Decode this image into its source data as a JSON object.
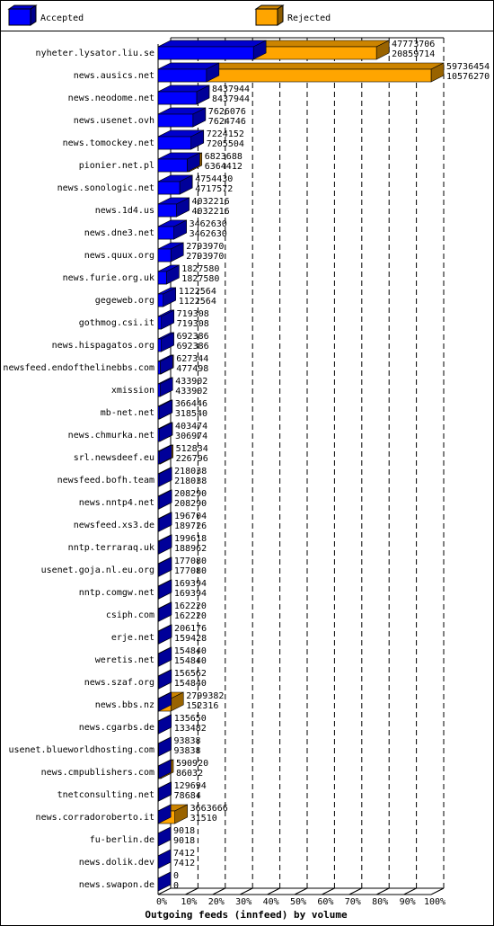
{
  "chart_data": {
    "type": "bar",
    "orientation": "horizontal",
    "title": "Outgoing feeds (innfeed) by volume",
    "categories": [
      "nyheter.lysator.liu.se",
      "news.ausics.net",
      "news.neodome.net",
      "news.usenet.ovh",
      "news.tomockey.net",
      "pionier.net.pl",
      "news.sonologic.net",
      "news.1d4.us",
      "news.dne3.net",
      "news.quux.org",
      "news.furie.org.uk",
      "gegeweb.org",
      "gothmog.csi.it",
      "news.hispagatos.org",
      "newsfeed.endofthelinebbs.com",
      "xmission",
      "mb-net.net",
      "news.chmurka.net",
      "srl.newsdeef.eu",
      "newsfeed.bofh.team",
      "news.nntp4.net",
      "newsfeed.xs3.de",
      "nntp.terraraq.uk",
      "usenet.goja.nl.eu.org",
      "nntp.comgw.net",
      "csiph.com",
      "erje.net",
      "weretis.net",
      "news.szaf.org",
      "news.bbs.nz",
      "news.cgarbs.de",
      "usenet.blueworldhosting.com",
      "news.cmpublishers.com",
      "tnetconsulting.net",
      "news.corradoroberto.it",
      "fu-berlin.de",
      "news.dolik.dev",
      "news.swapon.de"
    ],
    "series": [
      {
        "name": "Rejected",
        "color": "#ffa500",
        "values": [
          47773706,
          59736454,
          8437944,
          7626076,
          7224152,
          6823688,
          4754430,
          4032216,
          3462630,
          2793970,
          1827580,
          1122564,
          719308,
          692386,
          627344,
          433902,
          366446,
          403474,
          512834,
          218038,
          208290,
          196704,
          199618,
          177080,
          169394,
          162220,
          206176,
          154840,
          156562,
          2799382,
          135650,
          93838,
          590920,
          129694,
          3663666,
          9018,
          7412,
          0
        ]
      },
      {
        "name": "Accepted",
        "color": "#0000ff",
        "values": [
          20859714,
          10576270,
          8437944,
          7624746,
          7205504,
          6364412,
          4717572,
          4032216,
          3462630,
          2793970,
          1827580,
          1122564,
          719308,
          692386,
          477498,
          433902,
          318540,
          306974,
          226796,
          218038,
          208290,
          189726,
          188962,
          177080,
          169394,
          162220,
          159428,
          154840,
          154840,
          152316,
          133482,
          93838,
          86032,
          78684,
          31510,
          9018,
          7412,
          0
        ]
      }
    ],
    "legend_order": [
      1,
      0
    ],
    "xlim": [
      0,
      59736454
    ],
    "xticks": [
      {
        "value": 0,
        "label": "0%"
      },
      {
        "value": 5973645.4,
        "label": "10%"
      },
      {
        "value": 11947290.8,
        "label": "20%"
      },
      {
        "value": 17920936.2,
        "label": "30%"
      },
      {
        "value": 23894581.6,
        "label": "40%"
      },
      {
        "value": 29868227,
        "label": "50%"
      },
      {
        "value": 35841872.4,
        "label": "60%"
      },
      {
        "value": 41815517.8,
        "label": "70%"
      },
      {
        "value": 47789163.2,
        "label": "80%"
      },
      {
        "value": 53762808.6,
        "label": "90%"
      },
      {
        "value": 59736454,
        "label": "100%"
      }
    ],
    "grid": true
  }
}
